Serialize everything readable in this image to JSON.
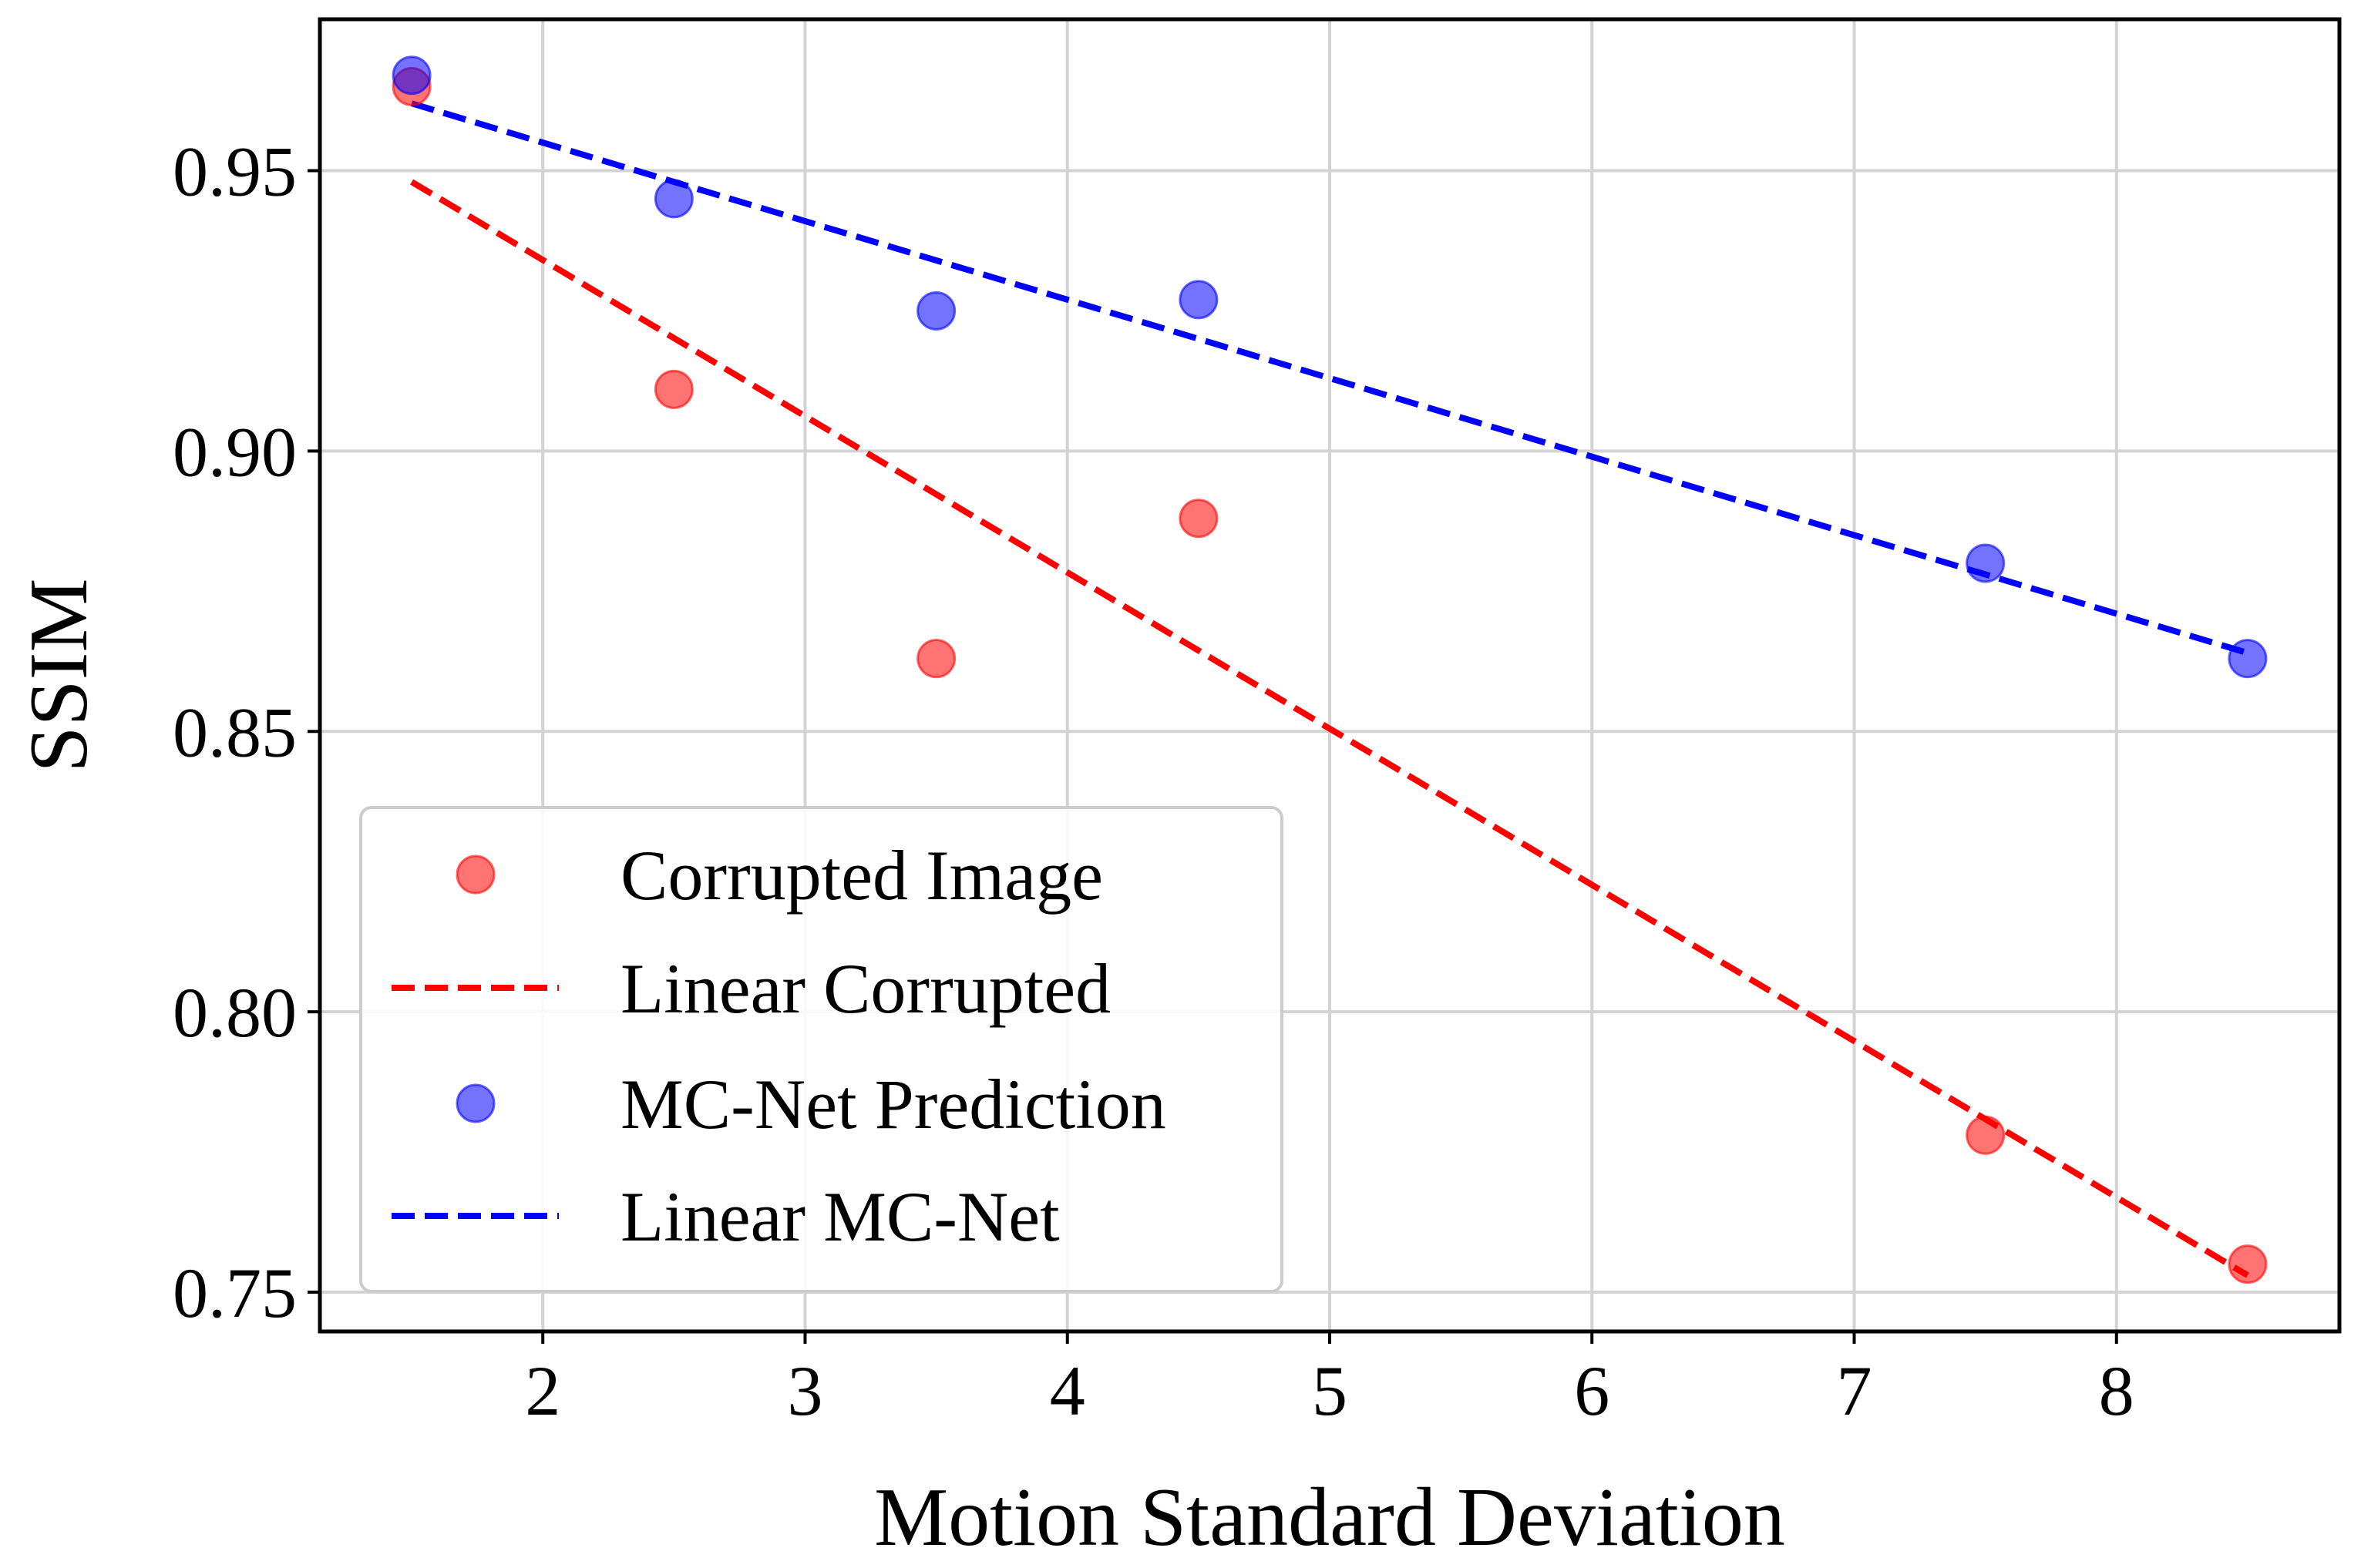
{
  "chart_data": {
    "type": "scatter",
    "title": "",
    "xlabel": "Motion Standard Deviation",
    "ylabel": "SSIM",
    "xlim": [
      1.15,
      8.85
    ],
    "ylim": [
      0.743,
      0.977
    ],
    "grid": true,
    "xticks": [
      2,
      3,
      4,
      5,
      6,
      7,
      8
    ],
    "xtick_labels": [
      "2",
      "3",
      "4",
      "5",
      "6",
      "7",
      "8"
    ],
    "yticks": [
      0.75,
      0.8,
      0.85,
      0.9,
      0.95
    ],
    "ytick_labels": [
      "0.75",
      "0.80",
      "0.85",
      "0.90",
      "0.95"
    ],
    "legend_position": "lower-left",
    "series": [
      {
        "name": "Corrupted Image",
        "kind": "scatter",
        "color": "#ff0000",
        "x": [
          1.5,
          2.5,
          3.5,
          4.5,
          7.5,
          8.5
        ],
        "y": [
          0.965,
          0.911,
          0.863,
          0.888,
          0.778,
          0.755
        ]
      },
      {
        "name": "Linear Corrupted",
        "kind": "line",
        "dash": true,
        "color": "#ff0000",
        "x": [
          1.5,
          8.5
        ],
        "y": [
          0.948,
          0.753
        ]
      },
      {
        "name": "MC-Net Prediction",
        "kind": "scatter",
        "color": "#0000ff",
        "x": [
          1.5,
          2.5,
          3.5,
          4.5,
          7.5,
          8.5
        ],
        "y": [
          0.967,
          0.945,
          0.925,
          0.927,
          0.88,
          0.863
        ]
      },
      {
        "name": "Linear MC-Net",
        "kind": "line",
        "dash": true,
        "color": "#0000ff",
        "x": [
          1.5,
          8.5
        ],
        "y": [
          0.962,
          0.864
        ]
      }
    ]
  }
}
